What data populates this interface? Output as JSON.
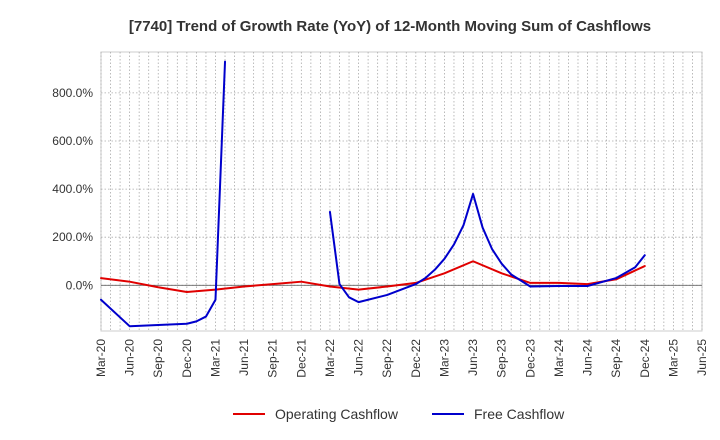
{
  "chart_data": {
    "type": "line",
    "title": "[7740]  Trend of Growth Rate (YoY) of 12-Month Moving Sum of Cashflows",
    "xlabel": "",
    "ylabel": "",
    "ylim": [
      -190,
      970
    ],
    "yticks": [
      {
        "value": 0,
        "label": "0.0%"
      },
      {
        "value": 200,
        "label": "200.0%"
      },
      {
        "value": 400,
        "label": "400.0%"
      },
      {
        "value": 600,
        "label": "600.0%"
      },
      {
        "value": 800,
        "label": "800.0%"
      }
    ],
    "x_start": "Mar-20",
    "x_months": 63,
    "xticks": [
      "Mar-20",
      "Jun-20",
      "Sep-20",
      "Dec-20",
      "Mar-21",
      "Jun-21",
      "Sep-21",
      "Dec-21",
      "Mar-22",
      "Jun-22",
      "Sep-22",
      "Dec-22",
      "Mar-23",
      "Jun-23",
      "Sep-23",
      "Dec-23",
      "Mar-24",
      "Jun-24",
      "Sep-24",
      "Dec-24",
      "Mar-25",
      "Jun-25"
    ],
    "grid": true,
    "legend_position": "bottom",
    "series": [
      {
        "name": "Operating Cashflow",
        "color": "#e00000",
        "points": [
          [
            "Mar-20",
            30
          ],
          [
            "Jun-20",
            15
          ],
          [
            "Sep-20",
            -8
          ],
          [
            "Dec-20",
            -28
          ],
          [
            "Mar-21",
            -18
          ],
          [
            "Jun-21",
            -5
          ],
          [
            "Sep-21",
            5
          ],
          [
            "Dec-21",
            15
          ],
          [
            "Mar-22",
            -5
          ],
          [
            "Jun-22",
            -18
          ],
          [
            "Sep-22",
            -5
          ],
          [
            "Dec-22",
            10
          ],
          [
            "Mar-23",
            50
          ],
          [
            "Jun-23",
            100
          ],
          [
            "Sep-23",
            50
          ],
          [
            "Dec-23",
            10
          ],
          [
            "Mar-24",
            10
          ],
          [
            "Jun-24",
            5
          ],
          [
            "Sep-24",
            25
          ],
          [
            "Dec-24",
            80
          ]
        ]
      },
      {
        "name": "Free Cashflow",
        "color": "#0000cc",
        "segments": [
          [
            [
              "Mar-20",
              -60
            ],
            [
              "Jun-20",
              -170
            ],
            [
              "Sep-20",
              -165
            ],
            [
              "Dec-20",
              -160
            ],
            [
              "Jan-21",
              -150
            ],
            [
              "Feb-21",
              -130
            ],
            [
              "Mar-21",
              -60
            ],
            [
              "Apr-21",
              930
            ]
          ],
          [
            [
              "Mar-22",
              305
            ],
            [
              "Apr-22",
              5
            ],
            [
              "May-22",
              -50
            ],
            [
              "Jun-22",
              -70
            ],
            [
              "Sep-22",
              -40
            ],
            [
              "Dec-22",
              5
            ],
            [
              "Jan-23",
              30
            ],
            [
              "Feb-23",
              65
            ],
            [
              "Mar-23",
              110
            ],
            [
              "Apr-23",
              170
            ],
            [
              "May-23",
              250
            ],
            [
              "Jun-23",
              380
            ],
            [
              "Jul-23",
              240
            ],
            [
              "Aug-23",
              150
            ],
            [
              "Sep-23",
              90
            ],
            [
              "Oct-23",
              45
            ],
            [
              "Nov-23",
              20
            ],
            [
              "Dec-23",
              -5
            ],
            [
              "Mar-24",
              -3
            ],
            [
              "Jun-24",
              -3
            ],
            [
              "Sep-24",
              30
            ],
            [
              "Nov-24",
              75
            ],
            [
              "Dec-24",
              125
            ]
          ]
        ]
      }
    ]
  }
}
